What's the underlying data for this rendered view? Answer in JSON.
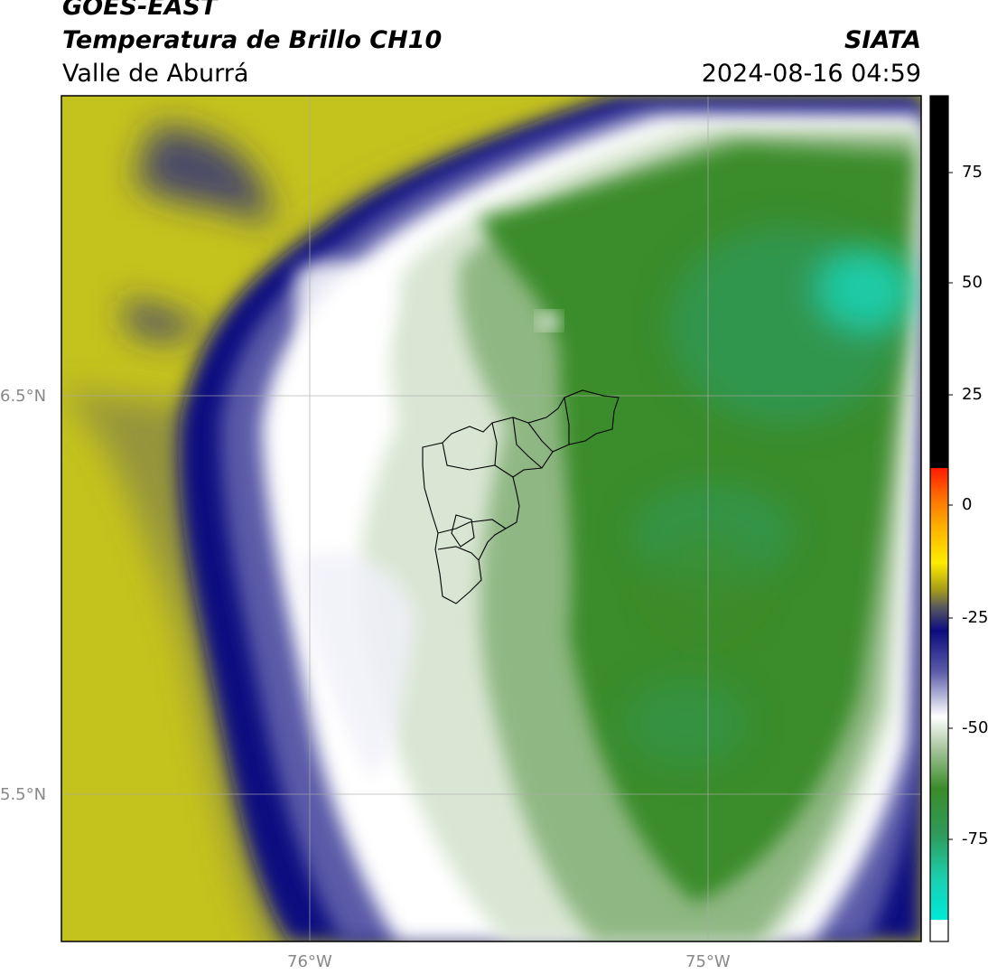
{
  "header": {
    "satellite": "GOES-EAST",
    "product": "Temperatura de Brillo CH10",
    "region": "Valle de Aburrá",
    "agency": "SIATA",
    "timestamp": "2024-08-16 04:59"
  },
  "map": {
    "lat_labels": [
      "6.5°N",
      "5.5°N"
    ],
    "lon_labels": [
      "76°W",
      "75°W"
    ],
    "layers": [
      "brightness-temperature-field",
      "lat-lon-gridlines",
      "municipality-boundaries-valle-de-aburra"
    ]
  },
  "colorbar": {
    "ticks": [
      "75",
      "50",
      "25",
      "0",
      "-25",
      "-50",
      "-75"
    ],
    "colors": {
      "top_black": "#000000",
      "red": "#ff1a00",
      "orange": "#ff8c00",
      "yellow": "#ffea00",
      "olive": "#a39a1a",
      "navy": "#0b0b80",
      "white": "#ffffff",
      "green": "#3b8c2a",
      "cyan": "#00e8d8"
    }
  }
}
